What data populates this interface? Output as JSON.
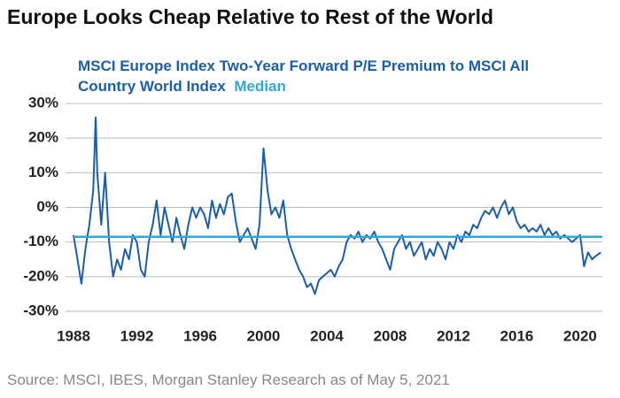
{
  "chart_data": {
    "type": "line",
    "title": "Europe Looks Cheap Relative to Rest of the World",
    "source": "Source: MSCI, IBES, Morgan Stanley Research as of May 5, 2021",
    "grid": true,
    "xlim": [
      1988,
      2021.4
    ],
    "xticks": [
      1988,
      1992,
      1996,
      2000,
      2004,
      2008,
      2012,
      2016,
      2020
    ],
    "ylim": [
      -30,
      30
    ],
    "yticks": [
      {
        "value": -30,
        "label": "-30%"
      },
      {
        "value": -20,
        "label": "-20%"
      },
      {
        "value": -10,
        "label": "-10%"
      },
      {
        "value": 0,
        "label": "0%"
      },
      {
        "value": 10,
        "label": "10%"
      },
      {
        "value": 20,
        "label": "20%"
      },
      {
        "value": 30,
        "label": "30%"
      }
    ],
    "median": {
      "name": "Median",
      "value": -8.5,
      "color": "#2ea7df"
    },
    "x": [
      1988.0,
      1988.25,
      1988.5,
      1988.75,
      1989.0,
      1989.25,
      1989.4,
      1989.5,
      1989.75,
      1990.0,
      1990.25,
      1990.5,
      1990.75,
      1991.0,
      1991.25,
      1991.5,
      1991.75,
      1992.0,
      1992.25,
      1992.5,
      1992.75,
      1993.0,
      1993.25,
      1993.5,
      1993.75,
      1994.0,
      1994.25,
      1994.5,
      1994.75,
      1995.0,
      1995.25,
      1995.5,
      1995.75,
      1996.0,
      1996.25,
      1996.5,
      1996.75,
      1997.0,
      1997.25,
      1997.5,
      1997.75,
      1998.0,
      1998.25,
      1998.5,
      1998.75,
      1999.0,
      1999.25,
      1999.5,
      1999.75,
      2000.0,
      2000.25,
      2000.5,
      2000.75,
      2001.0,
      2001.25,
      2001.5,
      2001.75,
      2002.0,
      2002.25,
      2002.5,
      2002.75,
      2003.0,
      2003.25,
      2003.5,
      2003.75,
      2004.0,
      2004.25,
      2004.5,
      2004.75,
      2005.0,
      2005.25,
      2005.5,
      2005.75,
      2006.0,
      2006.25,
      2006.5,
      2006.75,
      2007.0,
      2007.25,
      2007.5,
      2007.75,
      2008.0,
      2008.25,
      2008.5,
      2008.75,
      2009.0,
      2009.25,
      2009.5,
      2009.75,
      2010.0,
      2010.25,
      2010.5,
      2010.75,
      2011.0,
      2011.25,
      2011.5,
      2011.75,
      2012.0,
      2012.25,
      2012.5,
      2012.75,
      2013.0,
      2013.25,
      2013.5,
      2013.75,
      2014.0,
      2014.25,
      2014.5,
      2014.75,
      2015.0,
      2015.25,
      2015.5,
      2015.75,
      2016.0,
      2016.25,
      2016.5,
      2016.75,
      2017.0,
      2017.25,
      2017.5,
      2017.75,
      2018.0,
      2018.25,
      2018.5,
      2018.75,
      2019.0,
      2019.25,
      2019.5,
      2019.75,
      2020.0,
      2020.25,
      2020.5,
      2020.75,
      2021.0,
      2021.3
    ],
    "series": [
      {
        "name": "MSCI Europe Index Two-Year Forward P/E Premium to MSCI All Country World Index",
        "color": "#1b5ea8",
        "values": [
          -8,
          -15,
          -22,
          -12,
          -5,
          5,
          26,
          10,
          -5,
          10,
          -10,
          -20,
          -15,
          -18,
          -12,
          -15,
          -8,
          -10,
          -18,
          -20,
          -10,
          -5,
          2,
          -8,
          0,
          -5,
          -10,
          -3,
          -8,
          -12,
          -5,
          0,
          -3,
          0,
          -2,
          -6,
          2,
          -3,
          1,
          -2,
          3,
          4,
          -4,
          -10,
          -8,
          -6,
          -9,
          -12,
          -5,
          17,
          5,
          -2,
          0,
          -3,
          2,
          -8,
          -12,
          -15,
          -18,
          -20,
          -23,
          -22,
          -25,
          -21,
          -20,
          -19,
          -18,
          -20,
          -17,
          -15,
          -10,
          -8,
          -9,
          -7,
          -10,
          -8,
          -9,
          -7,
          -10,
          -12,
          -15,
          -18,
          -12,
          -10,
          -8,
          -12,
          -10,
          -14,
          -12,
          -10,
          -15,
          -12,
          -14,
          -10,
          -12,
          -15,
          -10,
          -12,
          -8,
          -10,
          -7,
          -8,
          -5,
          -6,
          -3,
          -1,
          -2,
          0,
          -3,
          0,
          2,
          -2,
          0,
          -4,
          -6,
          -5,
          -7,
          -6,
          -7,
          -5,
          -8,
          -6,
          -8,
          -7,
          -9,
          -8,
          -9,
          -10,
          -9,
          -8,
          -17,
          -13,
          -15,
          -14,
          -13
        ]
      }
    ]
  }
}
